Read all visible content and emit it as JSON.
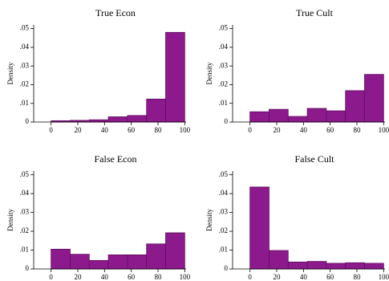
{
  "chart_data": [
    {
      "type": "histogram",
      "title": "True Econ",
      "ylabel": "Density",
      "color": "#8c1a8c",
      "bins": [
        0,
        14.29,
        28.57,
        42.86,
        57.14,
        71.43,
        85.71,
        100
      ],
      "values": [
        0.0007,
        0.0009,
        0.0012,
        0.0028,
        0.0035,
        0.0123,
        0.048
      ],
      "xlim": [
        -13,
        101
      ],
      "xticks": [
        0,
        20,
        40,
        60,
        80,
        100
      ],
      "ylim": [
        0,
        0.052
      ],
      "yticks": [
        0,
        {
          "value": 0.01,
          "label": ".01"
        },
        {
          "value": 0.02,
          "label": ".02"
        },
        {
          "value": 0.03,
          "label": ".03"
        },
        {
          "value": 0.04,
          "label": ".04"
        },
        {
          "value": 0.05,
          "label": ".05"
        }
      ]
    },
    {
      "type": "histogram",
      "title": "True Cult",
      "ylabel": "Density",
      "color": "#8c1a8c",
      "bins": [
        0,
        14.29,
        28.57,
        42.86,
        57.14,
        71.43,
        85.71,
        100
      ],
      "values": [
        0.0055,
        0.0068,
        0.003,
        0.0073,
        0.006,
        0.0168,
        0.0255
      ],
      "xlim": [
        -13,
        101
      ],
      "xticks": [
        0,
        20,
        40,
        60,
        80,
        100
      ],
      "ylim": [
        0,
        0.052
      ],
      "yticks": [
        0,
        {
          "value": 0.01,
          "label": ".01"
        },
        {
          "value": 0.02,
          "label": ".02"
        },
        {
          "value": 0.03,
          "label": ".03"
        },
        {
          "value": 0.04,
          "label": ".04"
        },
        {
          "value": 0.05,
          "label": ".05"
        }
      ]
    },
    {
      "type": "histogram",
      "title": "False Econ",
      "ylabel": "Density",
      "color": "#8c1a8c",
      "bins": [
        0,
        14.29,
        28.57,
        42.86,
        57.14,
        71.43,
        85.71,
        100
      ],
      "values": [
        0.0105,
        0.0078,
        0.0045,
        0.0075,
        0.0075,
        0.0133,
        0.0192
      ],
      "xlim": [
        -13,
        101
      ],
      "xticks": [
        0,
        20,
        40,
        60,
        80,
        100
      ],
      "ylim": [
        0,
        0.052
      ],
      "yticks": [
        0,
        {
          "value": 0.01,
          "label": ".01"
        },
        {
          "value": 0.02,
          "label": ".02"
        },
        {
          "value": 0.03,
          "label": ".03"
        },
        {
          "value": 0.04,
          "label": ".04"
        },
        {
          "value": 0.05,
          "label": ".05"
        }
      ]
    },
    {
      "type": "histogram",
      "title": "False Cult",
      "ylabel": "Density",
      "color": "#8c1a8c",
      "bins": [
        0,
        14.29,
        28.57,
        42.86,
        57.14,
        71.43,
        85.71,
        100
      ],
      "values": [
        0.0435,
        0.0098,
        0.0037,
        0.004,
        0.003,
        0.0033,
        0.003
      ],
      "xlim": [
        -13,
        101
      ],
      "xticks": [
        0,
        20,
        40,
        60,
        80,
        100
      ],
      "ylim": [
        0,
        0.052
      ],
      "yticks": [
        0,
        {
          "value": 0.01,
          "label": ".01"
        },
        {
          "value": 0.02,
          "label": ".02"
        },
        {
          "value": 0.03,
          "label": ".03"
        },
        {
          "value": 0.04,
          "label": ".04"
        },
        {
          "value": 0.05,
          "label": ".05"
        }
      ]
    }
  ]
}
